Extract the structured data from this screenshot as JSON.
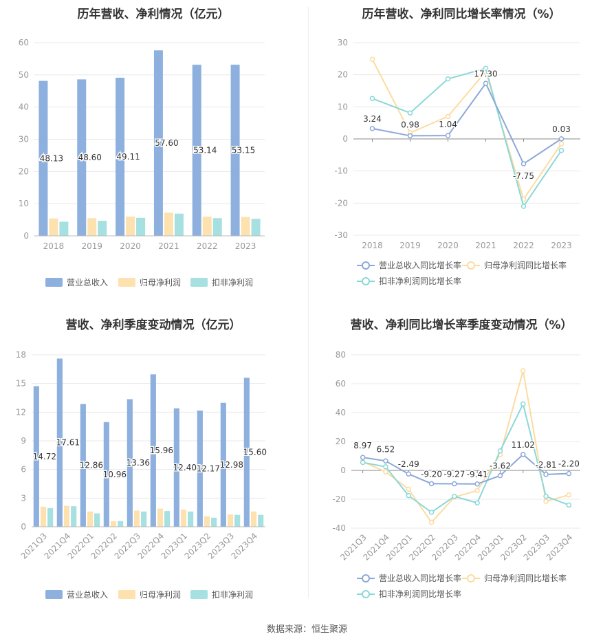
{
  "source": "数据来源：恒生聚源",
  "colors": {
    "revenue": "#8eb0de",
    "net_profit": "#fde2b0",
    "deducted_profit": "#a7e0e0",
    "revenue_line": "#8ca8d8",
    "net_line": "#fddba0",
    "deducted_line": "#8ad8d8"
  },
  "chart_data": [
    {
      "id": "annual_amount",
      "type": "bar",
      "title": "历年营收、净利情况（亿元）",
      "categories": [
        "2018",
        "2019",
        "2020",
        "2021",
        "2022",
        "2023"
      ],
      "ylim": [
        0,
        60
      ],
      "yticks": [
        0,
        10,
        20,
        30,
        40,
        50,
        60
      ],
      "series": [
        {
          "name": "营业总收入",
          "values": [
            48.13,
            48.6,
            49.11,
            57.6,
            53.14,
            53.15
          ],
          "labels": [
            "48.13",
            "48.60",
            "49.11",
            "57.60",
            "53.14",
            "53.15"
          ]
        },
        {
          "name": "归母净利润",
          "values": [
            5.4,
            5.5,
            6.0,
            7.2,
            6.0,
            5.9
          ]
        },
        {
          "name": "扣非净利润",
          "values": [
            4.4,
            4.7,
            5.6,
            6.9,
            5.5,
            5.3
          ]
        }
      ],
      "legend": "bottom"
    },
    {
      "id": "annual_growth",
      "type": "line",
      "title": "历年营收、净利同比增长率情况（%）",
      "categories": [
        "2018",
        "2019",
        "2020",
        "2021",
        "2022",
        "2023"
      ],
      "ylim": [
        -30,
        30
      ],
      "yticks": [
        -30,
        -20,
        -10,
        0,
        10,
        20,
        30
      ],
      "series": [
        {
          "name": "营业总收入同比增长率",
          "values": [
            3.24,
            0.98,
            1.04,
            17.3,
            -7.75,
            0.03
          ],
          "labels": [
            "3.24",
            "0.98",
            "1.04",
            "17.30",
            "-7.75",
            "0.03"
          ]
        },
        {
          "name": "归母净利润同比增长率",
          "values": [
            24.8,
            1.9,
            7.0,
            21.0,
            -18.8,
            -1.5
          ]
        },
        {
          "name": "扣非净利润同比增长率",
          "values": [
            12.6,
            8.1,
            18.7,
            22.0,
            -21.0,
            -3.6
          ]
        }
      ],
      "legend": "bottom"
    },
    {
      "id": "quarterly_amount",
      "type": "bar",
      "title": "营收、净利季度变动情况（亿元）",
      "categories": [
        "2021Q3",
        "2021Q4",
        "2022Q1",
        "2022Q2",
        "2022Q3",
        "2022Q4",
        "2023Q1",
        "2023Q2",
        "2023Q3",
        "2023Q4"
      ],
      "ylim": [
        0,
        18
      ],
      "yticks": [
        0,
        3,
        6,
        9,
        12,
        15,
        18
      ],
      "series": [
        {
          "name": "营业总收入",
          "values": [
            14.72,
            17.61,
            12.86,
            10.96,
            13.36,
            15.96,
            12.4,
            12.17,
            12.98,
            15.6
          ],
          "labels": [
            "14.72",
            "17.61",
            "12.86",
            "10.96",
            "13.36",
            "15.96",
            "12.40",
            "12.17",
            "12.98",
            "15.60"
          ]
        },
        {
          "name": "归母净利润",
          "values": [
            2.1,
            2.2,
            1.6,
            0.6,
            1.7,
            1.9,
            1.8,
            1.1,
            1.3,
            1.6
          ]
        },
        {
          "name": "扣非净利润",
          "values": [
            1.95,
            2.15,
            1.4,
            0.6,
            1.6,
            1.65,
            1.6,
            0.95,
            1.25,
            1.25
          ]
        }
      ],
      "legend": "bottom"
    },
    {
      "id": "quarterly_growth",
      "type": "line",
      "title": "营收、净利同比增长率季度变动情况（%）",
      "categories": [
        "2021Q3",
        "2021Q4",
        "2022Q1",
        "2022Q2",
        "2022Q3",
        "2022Q4",
        "2023Q1",
        "2023Q2",
        "2023Q3",
        "2023Q4"
      ],
      "ylim": [
        -40,
        80
      ],
      "yticks": [
        -40,
        -20,
        0,
        20,
        40,
        60,
        80
      ],
      "series": [
        {
          "name": "营业总收入同比增长率",
          "values": [
            8.97,
            6.52,
            -2.49,
            -9.2,
            -9.27,
            -9.41,
            -3.62,
            11.02,
            -2.81,
            -2.2
          ],
          "labels": [
            "8.97",
            "6.52",
            "-2.49",
            "-9.20",
            "-9.27",
            "-9.41",
            "-3.62",
            "11.02",
            "-2.81",
            "-2.20"
          ]
        },
        {
          "name": "归母净利润同比增长率",
          "values": [
            6.0,
            -1.0,
            -13.0,
            -36.0,
            -18.5,
            -14.0,
            11.0,
            69.0,
            -21.5,
            -17.0
          ]
        },
        {
          "name": "扣非净利润同比增长率",
          "values": [
            5.5,
            2.5,
            -17.5,
            -29.0,
            -18.0,
            -22.5,
            13.5,
            46.0,
            -18.0,
            -24.0
          ]
        }
      ],
      "legend": "bottom"
    }
  ]
}
